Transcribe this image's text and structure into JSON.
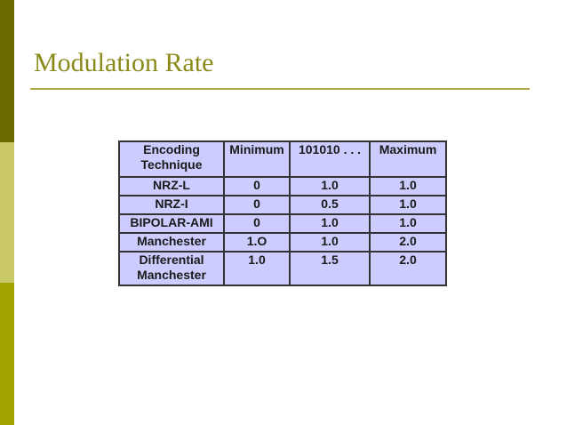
{
  "slide": {
    "title": "Modulation Rate"
  },
  "table": {
    "headers": [
      "Encoding Technique",
      "Minimum",
      "101010 . . .",
      "Maximum"
    ],
    "rows": [
      [
        "NRZ-L",
        "0",
        "1.0",
        "1.0"
      ],
      [
        "NRZ-I",
        "0",
        "0.5",
        "1.0"
      ],
      [
        "BIPOLAR-AMI",
        "0",
        "1.0",
        "1.0"
      ],
      [
        "Manchester",
        "1.O",
        "1.0",
        "2.0"
      ],
      [
        "Differential Manchester",
        "1.0",
        "1.5",
        "2.0"
      ]
    ]
  },
  "colors": {
    "sidebar_dark": "#6b6b00",
    "sidebar_light": "#c9c96a",
    "sidebar_mid": "#a3a300",
    "title": "#8a8a1a",
    "table_bg": "#ccccff"
  }
}
